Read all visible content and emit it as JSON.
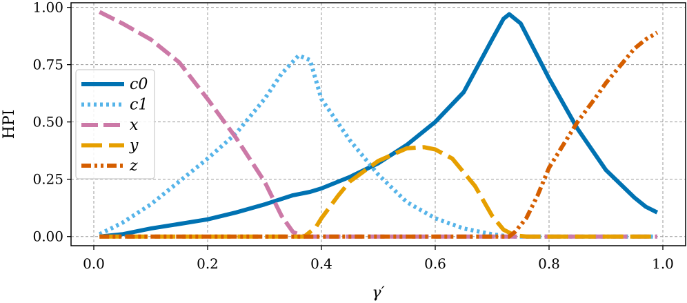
{
  "chart_data": {
    "type": "line",
    "title": "",
    "xlabel": "γ′",
    "ylabel": "HPI",
    "xlim": [
      -0.04,
      1.04
    ],
    "ylim": [
      -0.04,
      1.02
    ],
    "xticks": [
      0.0,
      0.2,
      0.4,
      0.6,
      0.8,
      1.0
    ],
    "xtick_labels": [
      "0.0",
      "0.2",
      "0.4",
      "0.6",
      "0.8",
      "1.0"
    ],
    "yticks": [
      0.0,
      0.25,
      0.5,
      0.75,
      1.0
    ],
    "ytick_labels": [
      "0.00",
      "0.25",
      "0.50",
      "0.75",
      "1.00"
    ],
    "grid": true,
    "legend_position": "center-left",
    "series": [
      {
        "name": "c0",
        "legend_label": "c0",
        "color": "#0072B2",
        "style": "solid",
        "x": [
          0.01,
          0.05,
          0.1,
          0.15,
          0.2,
          0.25,
          0.3,
          0.35,
          0.38,
          0.4,
          0.45,
          0.5,
          0.55,
          0.6,
          0.65,
          0.7,
          0.72,
          0.73,
          0.75,
          0.8,
          0.85,
          0.9,
          0.95,
          0.97,
          0.99
        ],
        "y": [
          0.0,
          0.01,
          0.035,
          0.055,
          0.075,
          0.105,
          0.14,
          0.18,
          0.195,
          0.21,
          0.26,
          0.32,
          0.4,
          0.5,
          0.63,
          0.86,
          0.95,
          0.97,
          0.93,
          0.69,
          0.47,
          0.29,
          0.17,
          0.13,
          0.105
        ]
      },
      {
        "name": "c1",
        "legend_label": "c1",
        "color": "#56B4E9",
        "style": "dotted",
        "x": [
          0.01,
          0.05,
          0.1,
          0.15,
          0.2,
          0.25,
          0.3,
          0.33,
          0.36,
          0.38,
          0.4,
          0.45,
          0.5,
          0.55,
          0.6,
          0.65,
          0.7,
          0.73,
          0.99
        ],
        "y": [
          0.01,
          0.06,
          0.14,
          0.24,
          0.34,
          0.45,
          0.6,
          0.71,
          0.79,
          0.77,
          0.6,
          0.42,
          0.27,
          0.15,
          0.08,
          0.035,
          0.01,
          0.0,
          0.0
        ]
      },
      {
        "name": "x",
        "legend_label": "x",
        "color": "#CC79A7",
        "style": "dashed",
        "x": [
          0.01,
          0.05,
          0.1,
          0.15,
          0.2,
          0.25,
          0.3,
          0.33,
          0.35,
          0.37,
          0.99
        ],
        "y": [
          0.98,
          0.93,
          0.86,
          0.76,
          0.6,
          0.43,
          0.24,
          0.09,
          0.02,
          0.0,
          0.0
        ]
      },
      {
        "name": "y",
        "legend_label": "y",
        "color": "#E69F00",
        "style": "longdash",
        "x": [
          0.01,
          0.37,
          0.39,
          0.4,
          0.43,
          0.45,
          0.5,
          0.55,
          0.58,
          0.6,
          0.63,
          0.67,
          0.7,
          0.72,
          0.74,
          0.76,
          0.99
        ],
        "y": [
          0.0,
          0.0,
          0.04,
          0.08,
          0.18,
          0.24,
          0.33,
          0.385,
          0.39,
          0.38,
          0.34,
          0.22,
          0.09,
          0.03,
          0.005,
          0.0,
          0.0
        ]
      },
      {
        "name": "z",
        "legend_label": "z",
        "color": "#D55E00",
        "style": "dashdotdot",
        "x": [
          0.01,
          0.73,
          0.74,
          0.76,
          0.78,
          0.8,
          0.83,
          0.85,
          0.88,
          0.9,
          0.93,
          0.95,
          0.97,
          0.99
        ],
        "y": [
          0.0,
          0.0,
          0.02,
          0.08,
          0.18,
          0.3,
          0.42,
          0.5,
          0.6,
          0.67,
          0.76,
          0.82,
          0.86,
          0.89
        ]
      }
    ]
  }
}
